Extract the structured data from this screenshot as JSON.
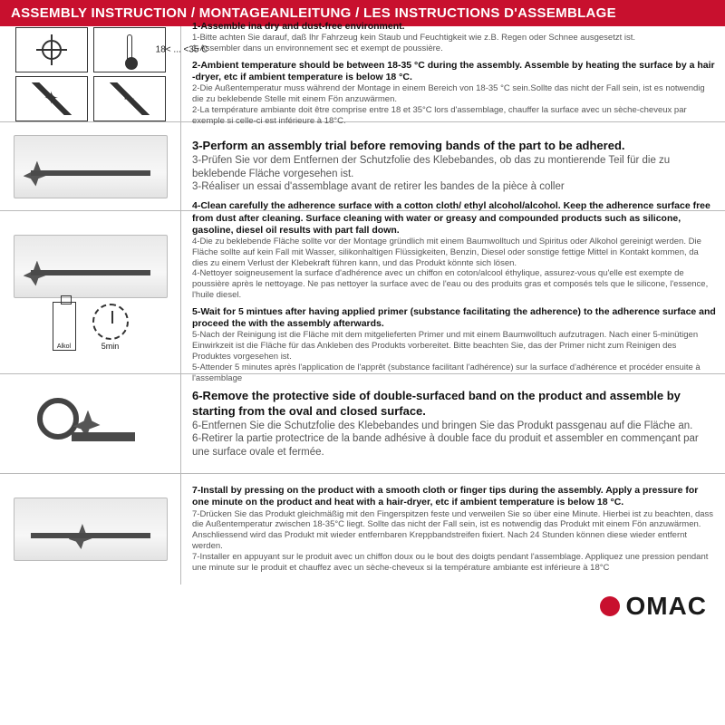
{
  "header": {
    "title": "ASSEMBLY INSTRUCTION / MONTAGEANLEITUNG / LES INSTRUCTIONS D'ASSEMBLAGE",
    "bg_color": "#c8102e",
    "text_color": "#ffffff"
  },
  "steps": [
    {
      "illus": "env",
      "temp_label": "18< ... <35 C",
      "groups": [
        {
          "lead": "1-Assemble ina dry and dust-free environment.",
          "subs": [
            "1-Bitte achten Sie darauf, daß Ihr Fahrzeug kein Staub und Feuchtigkeit wie z.B. Regen oder Schnee ausgesetzt ist.",
            "1-Assembler dans un environnement sec et exempt de poussière."
          ]
        },
        {
          "lead": "2-Ambient temperature should be between 18-35 °C  during the assembly. Assemble by heating the surface by a hair -dryer, etc if ambient temperature is below 18 °C.",
          "subs": [
            "2-Die Außentemperatur muss während der Montage in einem Bereich von 18-35 °C  sein.Sollte das nicht der Fall sein, ist es notwendig die zu beklebende Stelle mit einem Fön anzuwärmen.",
            "2-La température ambiante doit être comprise entre 18 et 35°C lors d'assemblage, chauffer la surface avec un sèche-cheveux par exemple si celle-ci est inférieure à 18°C."
          ]
        }
      ]
    },
    {
      "illus": "sill",
      "big": true,
      "groups": [
        {
          "lead": "3-Perform an assembly trial before removing bands of the part to be adhered.",
          "subs": [
            "3-Prüfen Sie vor dem Entfernen der Schutzfolie des Klebebandes, ob das zu montierende Teil für die zu beklebende Fläche vorgesehen ist.",
            "3-Réaliser un essai d'assemblage avant de retirer les bandes de la pièce à coller"
          ]
        }
      ]
    },
    {
      "illus": "clean",
      "bottle_label": "Alkol",
      "clock_label": "5min",
      "groups": [
        {
          "lead": "4-Clean carefully the adherence surface with a cotton cloth/ ethyl alcohol/alcohol. Keep the adherence surface free from dust after cleaning. Surface cleaning with water or greasy and compounded products such as silicone, gasoline, diesel oil results with part fall down.",
          "subs": [
            "4-Die zu beklebende Fläche sollte vor der Montage gründlich mit einem Baumwolltuch und Spiritus oder Alkohol gereinigt werden. Die Fläche sollte auf kein Fall mit Wasser, silikonhaltigen Flüssigkeiten, Benzin, Diesel oder sonstige fettige Mittel in Kontakt kommen, da dies zu einem Verlust der Klebekraft führen kann, und das Produkt könnte sich lösen.",
            "4-Nettoyer soigneusement la surface d'adhérence avec un chiffon en coton/alcool éthylique, assurez-vous qu'elle est exempte de poussière après le nettoyage. Ne pas nettoyer la surface avec de l'eau ou des produits gras et composés tels que le silicone, l'essence, l'huile diesel."
          ]
        },
        {
          "lead": "5-Wait for 5 mintues after having applied primer (substance facilitating the adherence) to the adherence surface and proceed the with the assembly afterwards.",
          "subs": [
            "5-Nach der Reinigung ist die Fläche mit dem mitgelieferten Primer und mit einem Baumwolltuch aufzutragen. Nach einer 5-minütigen Einwirkzeit ist die Fläche für das Ankleben des Produkts vorbereitet. Bitte beachten Sie, das der Primer nicht zum Reinigen des Produktes vorgesehen ist.",
            "5-Attender 5 minutes après l'application de l'apprêt (substance facilitant l'adhérence) sur la surface d'adhérence et procéder ensuite à l'assemblage"
          ]
        }
      ]
    },
    {
      "illus": "tape",
      "big": true,
      "groups": [
        {
          "lead": "6-Remove the protective side of double-surfaced band on the product and assemble by starting from the oval and closed surface.",
          "subs": [
            "6-Entfernen Sie die Schutzfolie des Klebebandes und bringen Sie das Produkt passgenau auf die Fläche an.",
            "6-Retirer la partie protectrice de la bande adhésive à double face du produit et assembler en commençant par une surface ovale et fermée."
          ]
        }
      ]
    },
    {
      "illus": "press",
      "groups": [
        {
          "lead": "7-Install by pressing on the product with a smooth cloth or finger tips during the assembly. Apply a pressure for one minute on the product and heat with a hair-dryer, etc if ambient temperature is below 18 °C.",
          "subs": [
            "7-Drücken Sie das Produkt gleichmäßig mit den Fingerspitzen feste und verweilen Sie so über eine Minute. Hierbei ist zu beachten, dass die Außentemperatur zwischen 18-35°C liegt. Sollte das nicht der Fall sein, ist es notwendig das Produkt mit einem Fön anzuwärmen. Anschliessend wird das Produkt mit wieder entfernbaren Kreppbandstreifen fixiert. Nach 24 Stunden können diese wieder entfernt werden.",
            "7-Installer en appuyant sur le produit avec un chiffon doux ou le bout des doigts pendant l'assemblage. Appliquez une pression pendant une minute sur le produit et chauffez avec un sèche-cheveux si la température ambiante est inférieure à 18°C"
          ]
        }
      ]
    }
  ],
  "footer": {
    "brand": "OMAC",
    "dot_color": "#c8102e"
  }
}
